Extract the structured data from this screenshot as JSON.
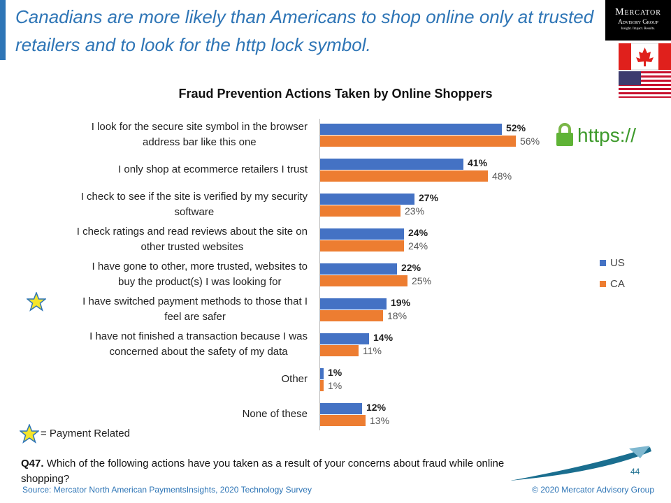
{
  "header": {
    "title": "Canadians are more likely than Americans to shop online only at trusted retailers and to look for the http lock symbol.",
    "logo_name": "Mercator",
    "logo_sub": "Advisory Group",
    "logo_tagline": "Insight. Impact. Results."
  },
  "chart_data": {
    "type": "hbar",
    "title": "Fraud Prevention Actions Taken by Online Shoppers",
    "categories": [
      "I look for the secure site symbol in the browser\naddress bar like this one",
      "I only shop at ecommerce retailers I trust",
      "I check to see if the site is verified by my security\nsoftware",
      "I check ratings and read reviews about the site on\nother trusted websites",
      "I have gone to other, more trusted, websites to\nbuy the product(s) I was looking for",
      "I have switched payment methods to those that I\nfeel are safer",
      "I have not finished a transaction because I was\nconcerned about the safety of my data",
      "Other",
      "None of these"
    ],
    "series": [
      {
        "name": "US",
        "color": "#4472c4",
        "values": [
          52,
          41,
          27,
          24,
          22,
          19,
          14,
          1,
          12
        ],
        "value_labels": [
          "52%",
          "41%",
          "27%",
          "24%",
          "22%",
          "19%",
          "14%",
          "1%",
          "12%"
        ]
      },
      {
        "name": "CA",
        "color": "#ed7d31",
        "values": [
          56,
          48,
          23,
          24,
          25,
          18,
          11,
          1,
          13
        ],
        "value_labels": [
          "56%",
          "48%",
          "23%",
          "24%",
          "25%",
          "18%",
          "11%",
          "1%",
          "13%"
        ]
      }
    ],
    "xlim": [
      0,
      100
    ],
    "legend": "right",
    "https_label": "https://",
    "star_note": "= Payment Related"
  },
  "footer": {
    "question_number": "Q47.",
    "question": "Which of the following actions have you taken as a result of your concerns about fraud while online shopping?",
    "source": "Source: Mercator North American PaymentsInsights, 2020 Technology Survey",
    "copyright": "© 2020  Mercator Advisory Group",
    "page": "44"
  }
}
